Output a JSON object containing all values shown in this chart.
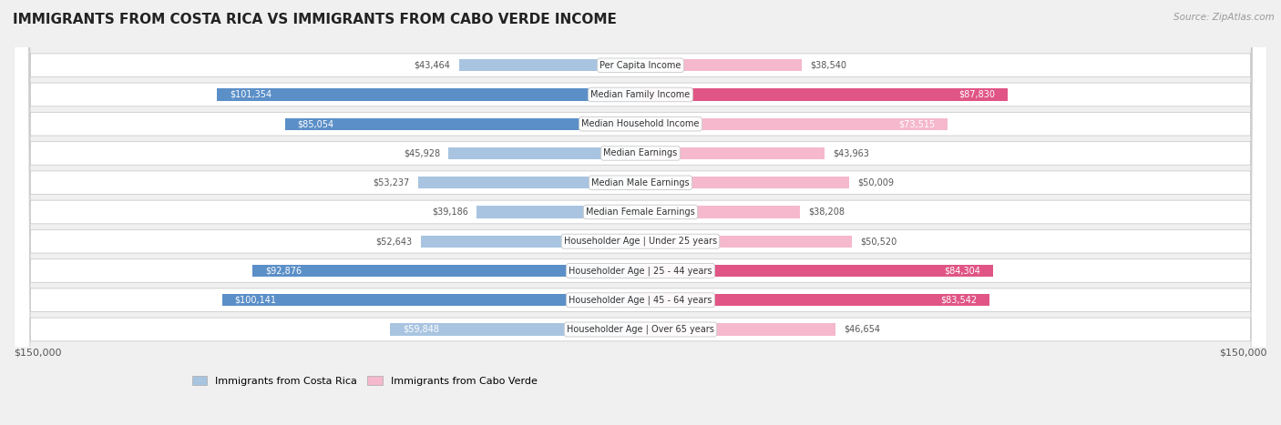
{
  "title": "IMMIGRANTS FROM COSTA RICA VS IMMIGRANTS FROM CABO VERDE INCOME",
  "source": "Source: ZipAtlas.com",
  "categories": [
    "Per Capita Income",
    "Median Family Income",
    "Median Household Income",
    "Median Earnings",
    "Median Male Earnings",
    "Median Female Earnings",
    "Householder Age | Under 25 years",
    "Householder Age | 25 - 44 years",
    "Householder Age | 45 - 64 years",
    "Householder Age | Over 65 years"
  ],
  "costa_rica_values": [
    43464,
    101354,
    85054,
    45928,
    53237,
    39186,
    52643,
    92876,
    100141,
    59848
  ],
  "cabo_verde_values": [
    38540,
    87830,
    73515,
    43963,
    50009,
    38208,
    50520,
    84304,
    83542,
    46654
  ],
  "costa_rica_labels": [
    "$43,464",
    "$101,354",
    "$85,054",
    "$45,928",
    "$53,237",
    "$39,186",
    "$52,643",
    "$92,876",
    "$100,141",
    "$59,848"
  ],
  "cabo_verde_labels": [
    "$38,540",
    "$87,830",
    "$73,515",
    "$43,963",
    "$50,009",
    "$38,208",
    "$50,520",
    "$84,304",
    "$83,542",
    "$46,654"
  ],
  "costa_rica_color_light": "#a8c4e0",
  "costa_rica_color_dark": "#5b8fc8",
  "cabo_verde_color_light": "#f5b8cc",
  "cabo_verde_color_dark": "#e05585",
  "dark_threshold": 75000,
  "max_val": 150000,
  "bg_color": "#f0f0f0",
  "row_bg": "#ffffff",
  "legend_cr": "Immigrants from Costa Rica",
  "legend_cv": "Immigrants from Cabo Verde",
  "xlabel_left": "$150,000",
  "xlabel_right": "$150,000"
}
